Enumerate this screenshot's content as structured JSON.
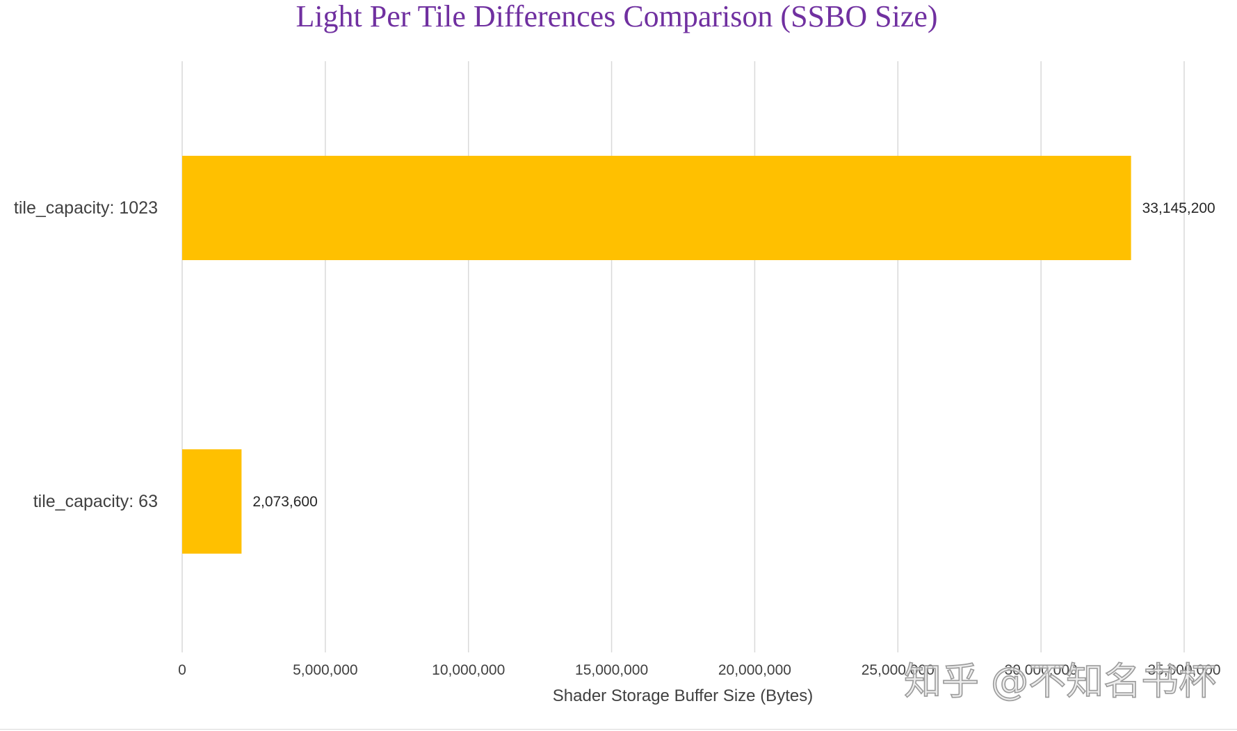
{
  "chart_data": {
    "type": "bar",
    "orientation": "horizontal",
    "title": "Light Per Tile Differences Comparison (SSBO Size)",
    "categories": [
      "tile_capacity: 1023",
      "tile_capacity: 63"
    ],
    "values": [
      33145200,
      2073600
    ],
    "value_labels": [
      "33,145,200",
      "2,073,600"
    ],
    "xlabel": "Shader Storage Buffer Size (Bytes)",
    "ylabel": "",
    "xlim": [
      0,
      35000000
    ],
    "xticks": [
      0,
      5000000,
      10000000,
      15000000,
      20000000,
      25000000,
      30000000,
      35000000
    ],
    "xtick_labels": [
      "0",
      "5,000,000",
      "10,000,000",
      "15,000,000",
      "20,000,000",
      "25,000,000",
      "30,000,000",
      "35,000,000"
    ],
    "grid": true,
    "legend": "none"
  },
  "colors": {
    "bar": "#FFC000",
    "title": "#7030A0",
    "gridline": "#D9D9D9"
  },
  "watermark": {
    "text": "知乎 @不知名书杯"
  }
}
